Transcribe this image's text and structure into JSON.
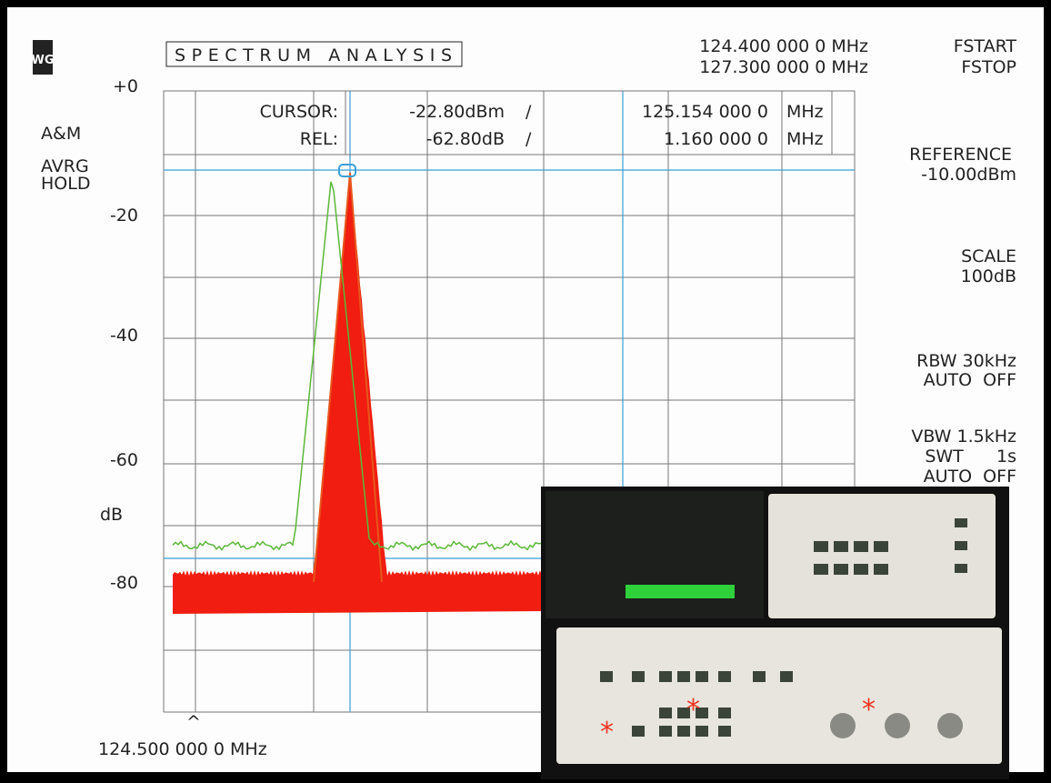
{
  "logo": "WG",
  "header": {
    "mode": "SPECTRUM ANALYSIS",
    "start_freq": "124.400 000 0 MHz",
    "stop_freq": "127.300 000 0 MHz",
    "start_label": "FSTART",
    "stop_label": "FSTOP"
  },
  "left_panel": {
    "ticks": [
      "+0",
      "-20",
      "-40",
      "-60",
      "-80"
    ],
    "mode_a": "A&M",
    "mode_b": "AVRG",
    "mode_c": "HOLD",
    "unit": "dB"
  },
  "cursor_table": {
    "rows": [
      [
        "CURSOR:",
        "-22.80dBm",
        "/",
        "125.154 000 0",
        "MHz"
      ],
      [
        "REL:",
        "-62.80dB",
        "/",
        "1.160 000 0",
        "MHz"
      ]
    ]
  },
  "right_panel": [
    [
      "REFERENCE",
      "-10.00dBm"
    ],
    [
      "SCALE",
      "100dB"
    ],
    [
      "RBW 30kHz",
      "AUTO  OFF"
    ],
    [
      "VBW 1.5kHz",
      "SWT      1s",
      "AUTO  OFF"
    ]
  ],
  "footer": {
    "marker": "^",
    "center_freq": "124.500 000 0 MHz"
  }
}
